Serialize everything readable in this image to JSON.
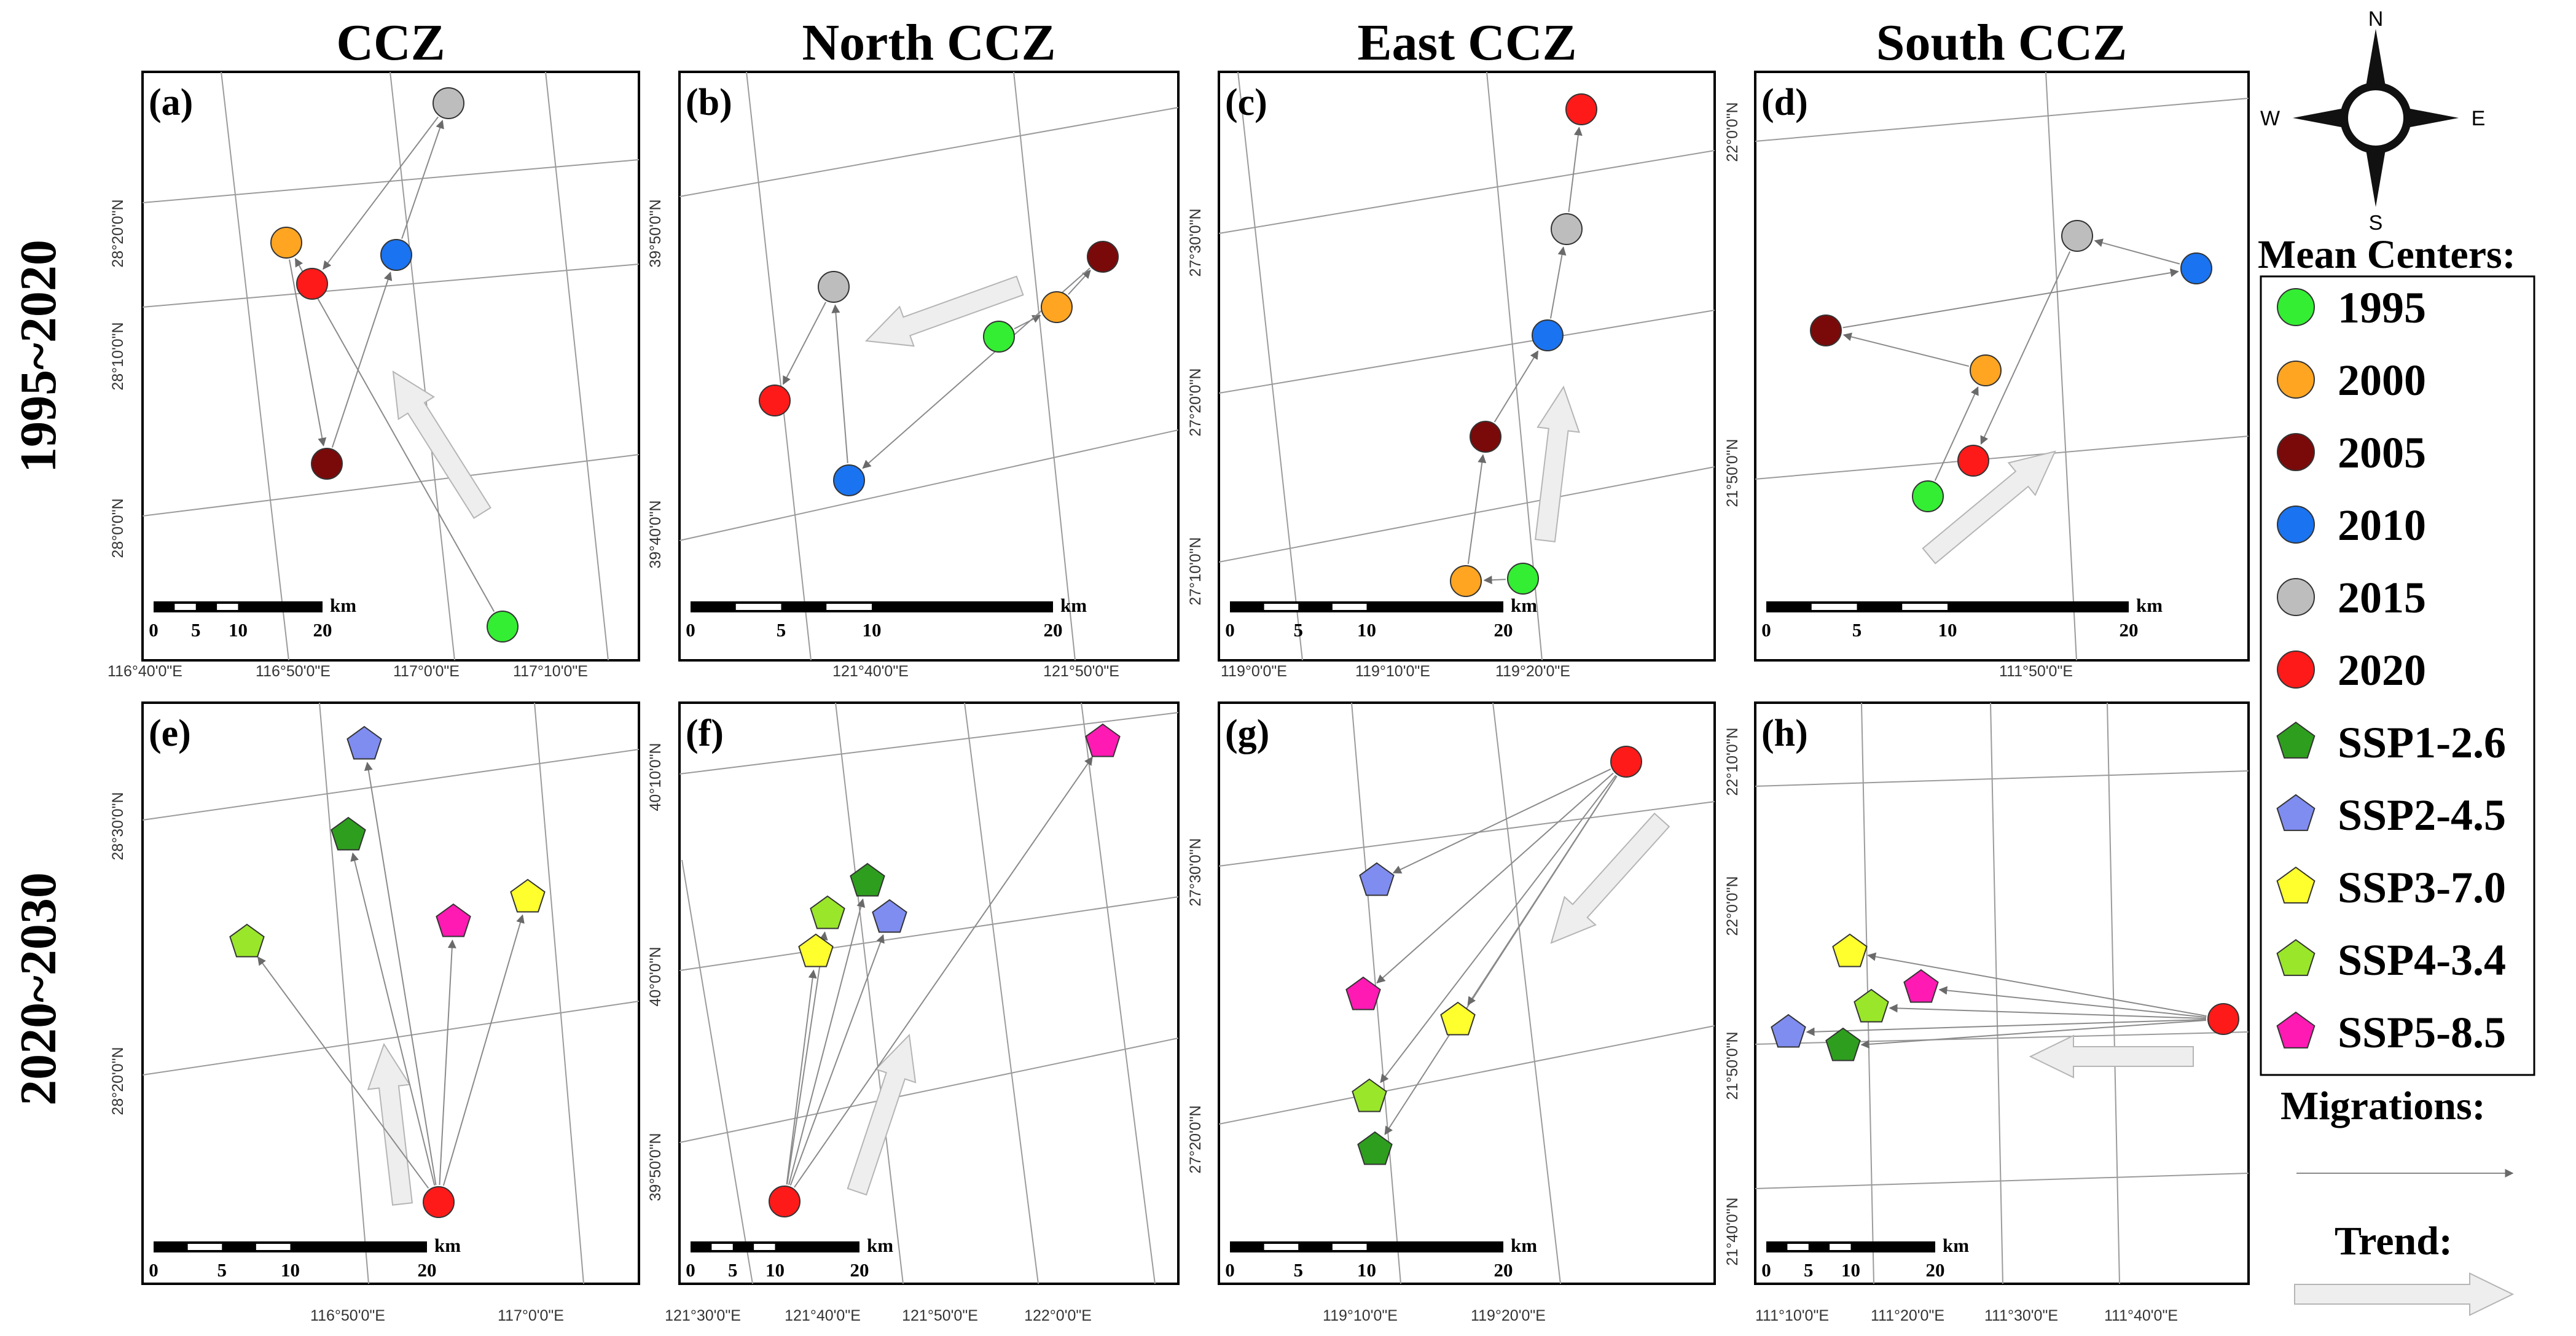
{
  "col_titles": [
    "CCZ",
    "North CCZ",
    "East CCZ",
    "South CCZ"
  ],
  "row_titles": [
    "1995~2020",
    "2020~2030"
  ],
  "km_unit": "km",
  "legend": {
    "mean_centers_title": "Mean Centers:",
    "items": [
      {
        "label": "1995",
        "color": "#33ee33",
        "shape": "circle"
      },
      {
        "label": "2000",
        "color": "#ffa521",
        "shape": "circle"
      },
      {
        "label": "2005",
        "color": "#7a0a0a",
        "shape": "circle"
      },
      {
        "label": "2010",
        "color": "#1a73f0",
        "shape": "circle"
      },
      {
        "label": "2015",
        "color": "#bdbdbd",
        "shape": "circle"
      },
      {
        "label": "2020",
        "color": "#ff1a1a",
        "shape": "circle"
      },
      {
        "label": "SSP1-2.6",
        "color": "#2e9e1e",
        "shape": "pentagon"
      },
      {
        "label": "SSP2-4.5",
        "color": "#7f8cf0",
        "shape": "pentagon"
      },
      {
        "label": "SSP3-7.0",
        "color": "#ffff2e",
        "shape": "pentagon"
      },
      {
        "label": "SSP4-3.4",
        "color": "#9ae62a",
        "shape": "pentagon"
      },
      {
        "label": "SSP5-8.5",
        "color": "#ff1ab4",
        "shape": "pentagon"
      }
    ],
    "migrations_title": "Migrations:",
    "trend_title": "Trend:"
  },
  "compass": {
    "n": "N",
    "s": "S",
    "e": "E",
    "w": "W"
  },
  "panels": [
    {
      "id": "a",
      "label": "(a)",
      "scalebar_ticks": [
        "0",
        "5",
        "10",
        "20"
      ],
      "x_ticks": [
        "116°40'0\"E",
        "116°50'0\"E",
        "117°0'0\"E",
        "117°10'0\"E"
      ],
      "y_ticks": [
        "28°20'0\"N",
        "28°10'0\"N",
        "28°0'0\"N"
      ],
      "centers": [
        "1995",
        "2000",
        "2005",
        "2010",
        "2015",
        "2020"
      ],
      "migrations": [
        "1995→2000",
        "2000→2005",
        "2005→2010",
        "2010→2015",
        "2015→2020"
      ]
    },
    {
      "id": "b",
      "label": "(b)",
      "scalebar_ticks": [
        "0",
        "5",
        "10",
        "20"
      ],
      "x_ticks": [
        "121°40'0\"E",
        "121°50'0\"E"
      ],
      "y_ticks": [
        "39°50'0\"N",
        "39°40'0\"N"
      ],
      "centers": [
        "1995",
        "2000",
        "2005",
        "2010",
        "2015",
        "2020"
      ],
      "migrations": [
        "1995→2000",
        "2000→2005",
        "2005→2010",
        "2010→2015",
        "2015→2020"
      ]
    },
    {
      "id": "c",
      "label": "(c)",
      "scalebar_ticks": [
        "0",
        "5",
        "10",
        "20"
      ],
      "x_ticks": [
        "119°0'0\"E",
        "119°10'0\"E",
        "119°20'0\"E"
      ],
      "y_ticks": [
        "27°30'0\"N",
        "27°20'0\"N",
        "27°10'0\"N"
      ],
      "centers": [
        "1995",
        "2000",
        "2005",
        "2010",
        "2015",
        "2020"
      ],
      "migrations": [
        "1995→2000",
        "2000→2005",
        "2005→2010",
        "2010→2015",
        "2015→2020"
      ]
    },
    {
      "id": "d",
      "label": "(d)",
      "scalebar_ticks": [
        "0",
        "5",
        "10",
        "20"
      ],
      "x_ticks": [
        "111°50'0\"E"
      ],
      "y_ticks": [
        "22°0'0\"N",
        "21°50'0\"N"
      ],
      "centers": [
        "1995",
        "2000",
        "2005",
        "2010",
        "2015",
        "2020"
      ],
      "migrations": [
        "1995→2000",
        "2000→2005",
        "2005→2010",
        "2010→2015",
        "2015→2020"
      ]
    },
    {
      "id": "e",
      "label": "(e)",
      "scalebar_ticks": [
        "0",
        "5",
        "10",
        "20"
      ],
      "x_ticks": [
        "116°50'0\"E",
        "117°0'0\"E"
      ],
      "y_ticks": [
        "28°30'0\"N",
        "28°20'0\"N"
      ],
      "centers": [
        "2020",
        "SSP1-2.6",
        "SSP2-4.5",
        "SSP3-7.0",
        "SSP4-3.4",
        "SSP5-8.5"
      ],
      "migrations": [
        "2020→SSP1-2.6",
        "2020→SSP2-4.5",
        "2020→SSP3-7.0",
        "2020→SSP4-3.4",
        "2020→SSP5-8.5"
      ]
    },
    {
      "id": "f",
      "label": "(f)",
      "scalebar_ticks": [
        "0",
        "5",
        "10",
        "20"
      ],
      "x_ticks": [
        "121°30'0\"E",
        "121°40'0\"E",
        "121°50'0\"E",
        "122°0'0\"E"
      ],
      "y_ticks": [
        "40°10'0\"N",
        "40°0'0\"N",
        "39°50'0\"N"
      ],
      "centers": [
        "2020",
        "SSP1-2.6",
        "SSP2-4.5",
        "SSP3-7.0",
        "SSP4-3.4",
        "SSP5-8.5"
      ],
      "migrations": [
        "2020→SSP1-2.6",
        "2020→SSP2-4.5",
        "2020→SSP3-7.0",
        "2020→SSP4-3.4",
        "2020→SSP5-8.5"
      ]
    },
    {
      "id": "g",
      "label": "(g)",
      "scalebar_ticks": [
        "0",
        "5",
        "10",
        "20"
      ],
      "x_ticks": [
        "119°10'0\"E",
        "119°20'0\"E"
      ],
      "y_ticks": [
        "27°30'0\"N",
        "27°20'0\"N"
      ],
      "centers": [
        "2020",
        "SSP1-2.6",
        "SSP2-4.5",
        "SSP3-7.0",
        "SSP4-3.4",
        "SSP5-8.5"
      ],
      "migrations": [
        "2020→SSP1-2.6",
        "2020→SSP2-4.5",
        "2020→SSP3-7.0",
        "2020→SSP4-3.4",
        "2020→SSP5-8.5"
      ]
    },
    {
      "id": "h",
      "label": "(h)",
      "scalebar_ticks": [
        "0",
        "5",
        "10",
        "20"
      ],
      "x_ticks": [
        "111°10'0\"E",
        "111°20'0\"E",
        "111°30'0\"E",
        "111°40'0\"E"
      ],
      "y_ticks": [
        "22°10'0\"N",
        "22°0'0\"N",
        "21°50'0\"N",
        "21°40'0\"N"
      ],
      "centers": [
        "2020",
        "SSP1-2.6",
        "SSP2-4.5",
        "SSP3-7.0",
        "SSP4-3.4",
        "SSP5-8.5"
      ],
      "migrations": [
        "2020→SSP1-2.6",
        "2020→SSP2-4.5",
        "2020→SSP3-7.0",
        "2020→SSP4-3.4",
        "2020→SSP5-8.5"
      ]
    }
  ]
}
